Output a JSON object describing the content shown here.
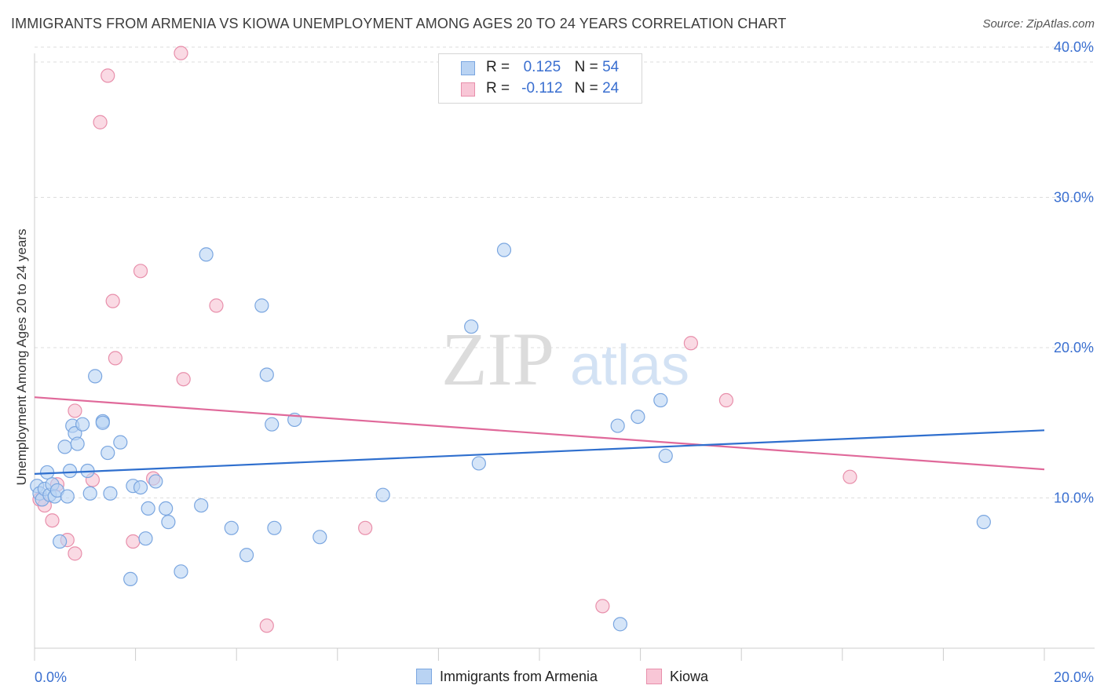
{
  "title": "IMMIGRANTS FROM ARMENIA VS KIOWA UNEMPLOYMENT AMONG AGES 20 TO 24 YEARS CORRELATION CHART",
  "source": "Source: ZipAtlas.com",
  "watermark": {
    "zip": "ZIP",
    "atlas": "atlas"
  },
  "legend": {
    "rows": [
      {
        "r_label": "R =",
        "r_value": "0.125",
        "n_label": "N =",
        "n_value": "54"
      },
      {
        "r_label": "R =",
        "r_value": "-0.112",
        "n_label": "N =",
        "n_value": "24"
      }
    ]
  },
  "bottom_legend": [
    "Immigrants from Armenia",
    "Kiowa"
  ],
  "colors": {
    "blue_fill": "#b9d3f3",
    "blue_stroke": "#7aa6e0",
    "blue_line": "#2f6fce",
    "pink_fill": "#f8c6d6",
    "pink_stroke": "#e88fab",
    "pink_line": "#e0699a",
    "axis_text": "#3a6fd0",
    "grid": "#dddddd"
  },
  "chart_data": {
    "type": "scatter",
    "title": "IMMIGRANTS FROM ARMENIA VS KIOWA UNEMPLOYMENT AMONG AGES 20 TO 24 YEARS CORRELATION CHART",
    "xlabel": "",
    "ylabel": "Unemployment Among Ages 20 to 24 years",
    "xlim": [
      0,
      20
    ],
    "ylim": [
      0,
      41
    ],
    "x_tick_labels": [
      "0.0%",
      "20.0%"
    ],
    "y_ticks": [
      10,
      20,
      30,
      40
    ],
    "y_tick_labels": [
      "10.0%",
      "20.0%",
      "30.0%",
      "40.0%"
    ],
    "series": [
      {
        "name": "Immigrants from Armenia",
        "R": 0.125,
        "N": 54,
        "trend": [
          [
            0,
            11.6
          ],
          [
            20,
            14.5
          ]
        ],
        "points": [
          [
            0.05,
            10.8
          ],
          [
            0.1,
            10.3
          ],
          [
            0.15,
            9.9
          ],
          [
            0.2,
            10.6
          ],
          [
            0.25,
            11.7
          ],
          [
            0.3,
            10.2
          ],
          [
            0.35,
            10.9
          ],
          [
            0.4,
            10.1
          ],
          [
            0.45,
            10.5
          ],
          [
            0.5,
            7.1
          ],
          [
            0.6,
            13.4
          ],
          [
            0.65,
            10.1
          ],
          [
            0.7,
            11.8
          ],
          [
            0.75,
            14.8
          ],
          [
            0.8,
            14.3
          ],
          [
            0.85,
            13.6
          ],
          [
            0.95,
            14.9
          ],
          [
            1.05,
            11.8
          ],
          [
            1.1,
            10.3
          ],
          [
            1.2,
            18.1
          ],
          [
            1.35,
            15.1
          ],
          [
            1.35,
            15.0
          ],
          [
            1.45,
            13.0
          ],
          [
            1.5,
            10.3
          ],
          [
            1.7,
            13.7
          ],
          [
            1.9,
            4.6
          ],
          [
            1.95,
            10.8
          ],
          [
            2.1,
            10.7
          ],
          [
            2.2,
            7.3
          ],
          [
            2.25,
            9.3
          ],
          [
            2.4,
            11.1
          ],
          [
            2.6,
            9.3
          ],
          [
            2.65,
            8.4
          ],
          [
            2.9,
            5.1
          ],
          [
            3.3,
            9.5
          ],
          [
            3.4,
            26.2
          ],
          [
            3.9,
            8.0
          ],
          [
            4.2,
            6.2
          ],
          [
            4.5,
            22.8
          ],
          [
            4.6,
            18.2
          ],
          [
            4.7,
            14.9
          ],
          [
            4.75,
            8.0
          ],
          [
            5.15,
            15.2
          ],
          [
            5.65,
            7.4
          ],
          [
            6.9,
            10.2
          ],
          [
            8.65,
            21.4
          ],
          [
            8.8,
            12.3
          ],
          [
            9.3,
            26.5
          ],
          [
            11.55,
            14.8
          ],
          [
            11.6,
            1.6
          ],
          [
            11.95,
            15.4
          ],
          [
            12.4,
            16.5
          ],
          [
            12.5,
            12.8
          ],
          [
            18.8,
            8.4
          ]
        ]
      },
      {
        "name": "Kiowa",
        "R": -0.112,
        "N": 24,
        "trend": [
          [
            0,
            16.7
          ],
          [
            20,
            11.9
          ]
        ],
        "points": [
          [
            0.1,
            9.9
          ],
          [
            0.2,
            9.5
          ],
          [
            0.35,
            8.5
          ],
          [
            0.45,
            10.9
          ],
          [
            0.65,
            7.2
          ],
          [
            0.8,
            6.3
          ],
          [
            0.8,
            15.8
          ],
          [
            1.15,
            11.2
          ],
          [
            1.3,
            35.0
          ],
          [
            1.45,
            38.1
          ],
          [
            1.55,
            23.1
          ],
          [
            1.6,
            19.3
          ],
          [
            1.95,
            7.1
          ],
          [
            2.1,
            25.1
          ],
          [
            2.35,
            11.3
          ],
          [
            2.95,
            17.9
          ],
          [
            2.9,
            39.6
          ],
          [
            3.6,
            22.8
          ],
          [
            4.6,
            1.5
          ],
          [
            6.55,
            8.0
          ],
          [
            11.25,
            2.8
          ],
          [
            13.0,
            20.3
          ],
          [
            13.7,
            16.5
          ],
          [
            16.15,
            11.4
          ]
        ]
      }
    ]
  }
}
